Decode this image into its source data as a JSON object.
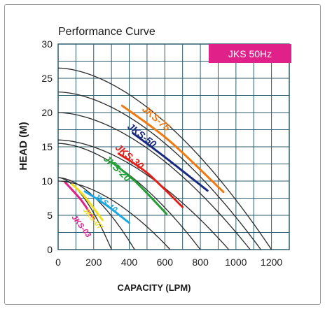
{
  "chart_data": {
    "type": "line",
    "title": "Performance Curve",
    "badge": {
      "text": "JKS 50Hz",
      "color": "#e0218a"
    },
    "xlabel": "CAPACITY (LPM)",
    "ylabel": "HEAD (M)",
    "xlim": [
      0,
      1300
    ],
    "ylim": [
      0,
      30
    ],
    "x_ticks": [
      "0",
      "200",
      "400",
      "600",
      "800",
      "1000",
      "1200"
    ],
    "y_ticks": [
      "0",
      "5",
      "10",
      "15",
      "20",
      "25",
      "30"
    ],
    "grid": true,
    "grid_color": "#2b5e6e",
    "curve_color": "#2a2a2a",
    "series": [
      {
        "name": "JKS-03",
        "color": "#e0218a",
        "head_at_zero": 10.5,
        "max_capacity": 300,
        "label_anchor": [
          120,
          3.2
        ],
        "highlight": [
          [
            40,
            9.8
          ],
          [
            130,
            7.2
          ],
          [
            200,
            4.5
          ]
        ]
      },
      {
        "name": "JKS-07",
        "color": "#f0e020",
        "head_at_zero": 10.5,
        "max_capacity": 430,
        "label_anchor": [
          185,
          4.3
        ],
        "highlight": [
          [
            80,
            9.5
          ],
          [
            150,
            7.7
          ],
          [
            250,
            4.3
          ]
        ]
      },
      {
        "name": "JKS-10",
        "color": "#1fa6e0",
        "head_at_zero": 10.0,
        "max_capacity": 630,
        "label_anchor": [
          260,
          6.5
        ],
        "highlight": [
          [
            150,
            8.5
          ],
          [
            270,
            6.5
          ],
          [
            400,
            3.9
          ]
        ]
      },
      {
        "name": "JKS-20",
        "color": "#25a038",
        "head_at_zero": 15.5,
        "max_capacity": 800,
        "label_anchor": [
          320,
          11.5
        ],
        "highlight": [
          [
            300,
            12.8
          ],
          [
            440,
            9.8
          ],
          [
            610,
            5.2
          ]
        ]
      },
      {
        "name": "JKS-30",
        "color": "#e0201a",
        "head_at_zero": 16.0,
        "max_capacity": 960,
        "label_anchor": [
          390,
          13.2
        ],
        "highlight": [
          [
            340,
            14.0
          ],
          [
            500,
            11.2
          ],
          [
            700,
            6.2
          ]
        ]
      },
      {
        "name": "JKS-50",
        "color": "#1a2a80",
        "head_at_zero": 20.0,
        "max_capacity": 1080,
        "label_anchor": [
          460,
          16.3
        ],
        "highlight": [
          [
            420,
            17.0
          ],
          [
            600,
            13.5
          ],
          [
            840,
            8.6
          ]
        ]
      },
      {
        "name": "JKS-75",
        "color": "#f07a10",
        "head_at_zero": 23.0,
        "max_capacity": 1140,
        "label_anchor": [
          540,
          18.8
        ],
        "highlight": [
          [
            360,
            21.0
          ],
          [
            620,
            16.0
          ],
          [
            930,
            8.4
          ]
        ]
      }
    ],
    "extra_curves": [
      {
        "head_at_zero": 26.5,
        "max_capacity": 1200
      }
    ]
  }
}
